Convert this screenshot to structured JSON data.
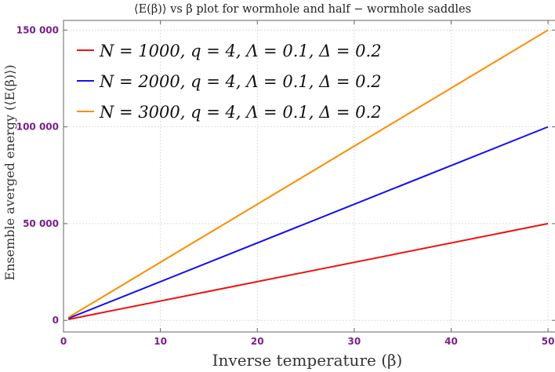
{
  "chart_data": {
    "type": "line",
    "title": "⟨E(β)⟩ vs β plot for wormhole and half − wormhole saddles",
    "xlabel": "Inverse temperature (β)",
    "ylabel": "Ensemble averged energy  (⟨E(β)⟩)",
    "xlim": [
      0,
      50.8
    ],
    "ylim": [
      -6000,
      155000
    ],
    "x_ticks": [
      0,
      10,
      20,
      30,
      40,
      50
    ],
    "y_ticks": [
      0,
      50000,
      100000,
      150000
    ],
    "x_tick_labels": [
      "0",
      "10",
      "20",
      "30",
      "40",
      "50"
    ],
    "y_tick_labels": [
      "0",
      "50 000",
      "100 000",
      "150 000"
    ],
    "grid": true,
    "legend_position": "top-left",
    "series": [
      {
        "name": "N = 1000, q = 4, Λ = 0.1, Δ = 0.2",
        "color": "#ee1111",
        "x": [
          0.5,
          50
        ],
        "y": [
          500,
          50000
        ]
      },
      {
        "name": "N = 2000, q = 4, Λ = 0.1, Δ = 0.2",
        "color": "#1111ee",
        "x": [
          0.5,
          50
        ],
        "y": [
          1000,
          100000
        ]
      },
      {
        "name": "N = 3000, q = 4, Λ = 0.1, Δ = 0.2",
        "color": "#ff8c00",
        "x": [
          0.5,
          50
        ],
        "y": [
          1500,
          150000
        ]
      }
    ]
  }
}
